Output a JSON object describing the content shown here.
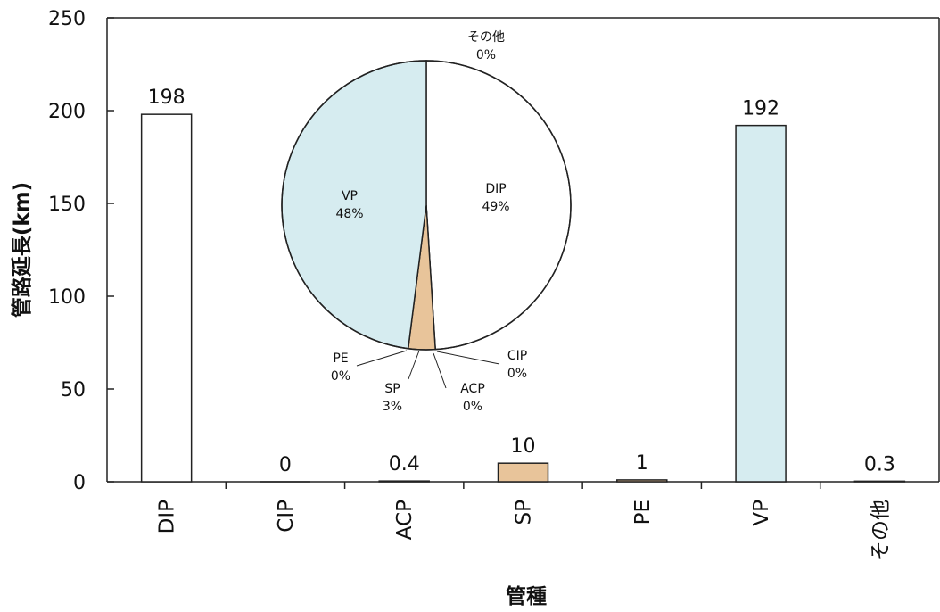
{
  "chart_data": [
    {
      "type": "bar",
      "xlabel": "管種",
      "ylabel": "管路延長(km)",
      "ylim": [
        0,
        250
      ],
      "yticks": [
        0,
        50,
        100,
        150,
        200,
        250
      ],
      "categories": [
        "DIP",
        "CIP",
        "ACP",
        "SP",
        "PE",
        "VP",
        "その他"
      ],
      "values": [
        198,
        0,
        0.4,
        10,
        1,
        192,
        0.3
      ],
      "value_labels": [
        "198",
        "0",
        "0.4",
        "10",
        "1",
        "192",
        "0.3"
      ],
      "bar_colors": [
        "#ffffff",
        "#ffffff",
        "#ffffff",
        "#e8c49a",
        "#e8c49a",
        "#d6ecf0",
        "#ffffff"
      ],
      "grid": false
    },
    {
      "type": "pie",
      "slices": [
        {
          "label": "DIP",
          "percent_label": "49%",
          "value": 49,
          "color": "#ffffff"
        },
        {
          "label": "CIP",
          "percent_label": "0%",
          "value": 0,
          "color": "#ffffff"
        },
        {
          "label": "ACP",
          "percent_label": "0%",
          "value": 0,
          "color": "#ffffff"
        },
        {
          "label": "SP",
          "percent_label": "3%",
          "value": 3,
          "color": "#e8c49a"
        },
        {
          "label": "PE",
          "percent_label": "0%",
          "value": 0,
          "color": "#e8c49a"
        },
        {
          "label": "VP",
          "percent_label": "48%",
          "value": 48,
          "color": "#d6ecf0"
        },
        {
          "label": "その他",
          "percent_label": "0%",
          "value": 0,
          "color": "#ffffff"
        }
      ]
    }
  ]
}
